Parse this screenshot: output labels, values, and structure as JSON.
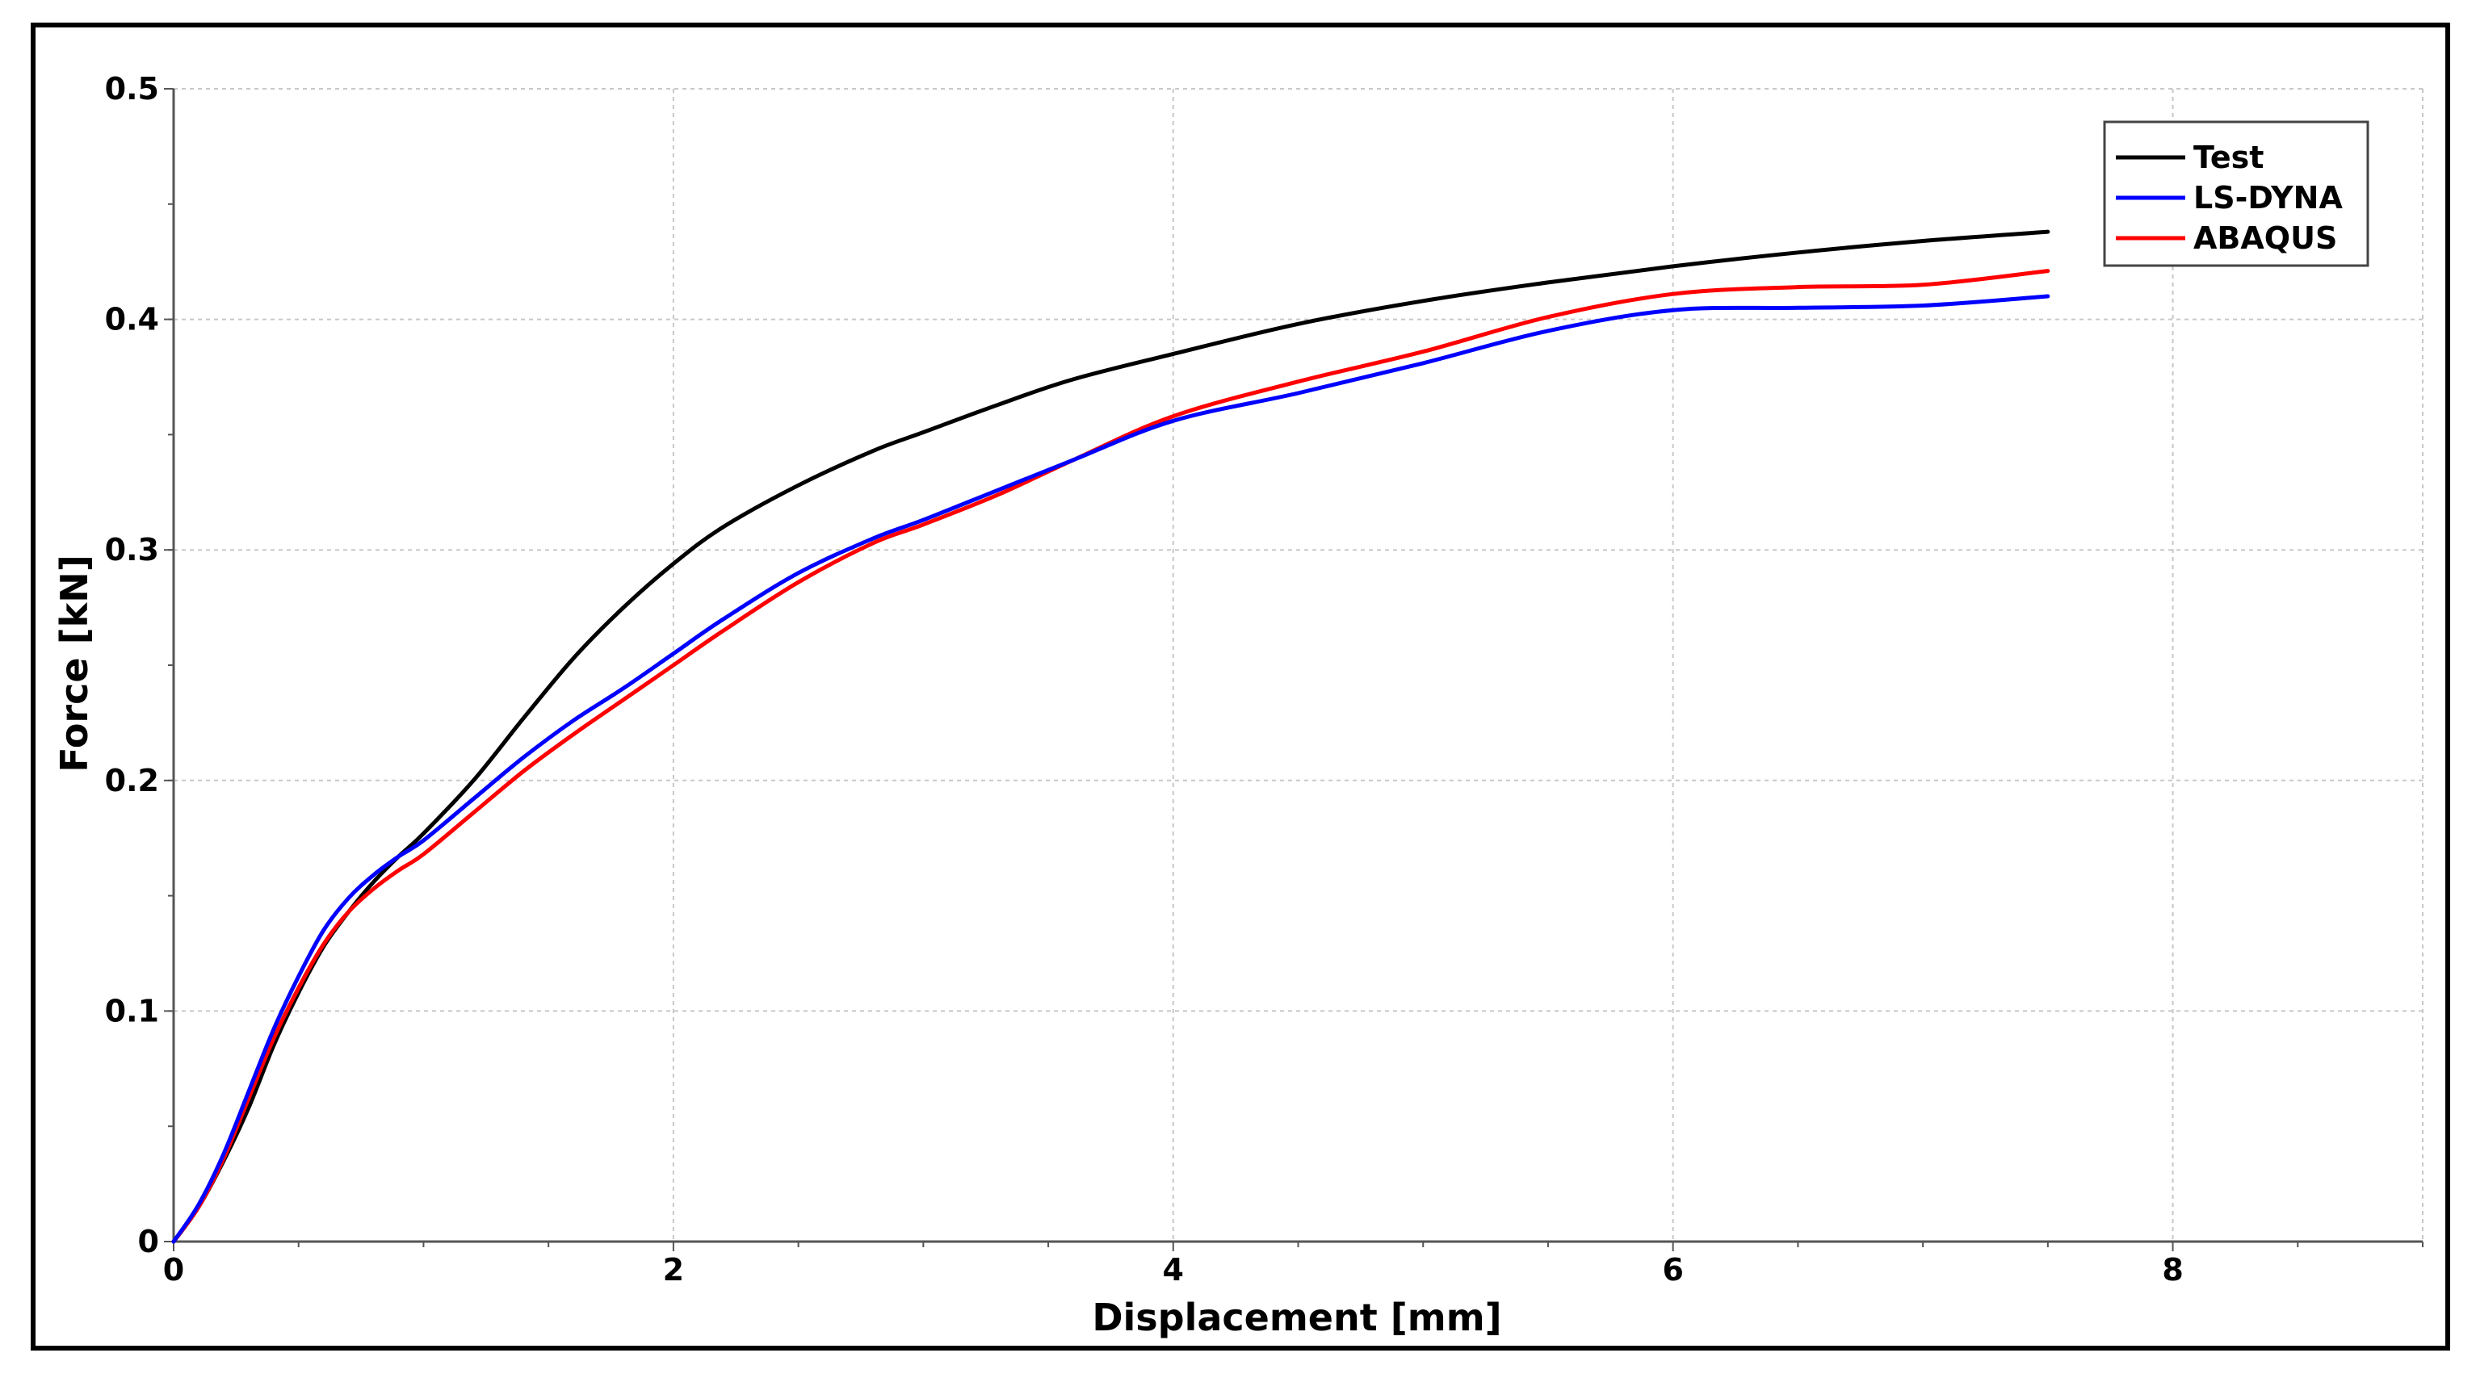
{
  "chart_data": {
    "type": "line",
    "xlabel": "Displacement [mm]",
    "ylabel": "Force [kN]",
    "xlim": [
      0,
      9
    ],
    "ylim": [
      0,
      0.5
    ],
    "x_ticks": [
      0,
      2,
      4,
      6,
      8
    ],
    "y_ticks": [
      0,
      0.1,
      0.2,
      0.3,
      0.4,
      0.5
    ],
    "x_tick_labels": [
      "0",
      "2",
      "4",
      "6",
      "8"
    ],
    "y_tick_labels": [
      "0",
      "0.1",
      "0.2",
      "0.3",
      "0.4",
      "0.5"
    ],
    "grid": true,
    "legend_position": "top-right",
    "series": [
      {
        "name": "Test",
        "color": "#000000",
        "x": [
          0,
          0.1,
          0.2,
          0.3,
          0.4,
          0.5,
          0.6,
          0.7,
          0.8,
          0.9,
          1.0,
          1.2,
          1.4,
          1.6,
          1.8,
          2.0,
          2.2,
          2.5,
          2.8,
          3.0,
          3.3,
          3.6,
          4.0,
          4.5,
          5.0,
          5.5,
          6.0,
          6.5,
          7.0,
          7.5
        ],
        "y": [
          0,
          0.015,
          0.035,
          0.058,
          0.085,
          0.108,
          0.128,
          0.143,
          0.156,
          0.167,
          0.177,
          0.2,
          0.227,
          0.253,
          0.275,
          0.294,
          0.31,
          0.328,
          0.343,
          0.351,
          0.363,
          0.374,
          0.385,
          0.398,
          0.408,
          0.416,
          0.423,
          0.429,
          0.434,
          0.438
        ]
      },
      {
        "name": "LS-DYNA",
        "color": "#0000ff",
        "x": [
          0,
          0.1,
          0.2,
          0.3,
          0.4,
          0.5,
          0.6,
          0.7,
          0.8,
          0.9,
          1.0,
          1.2,
          1.4,
          1.6,
          1.8,
          2.0,
          2.2,
          2.5,
          2.8,
          3.0,
          3.3,
          3.6,
          4.0,
          4.5,
          5.0,
          5.5,
          6.0,
          6.5,
          7.0,
          7.5
        ],
        "y": [
          0,
          0.016,
          0.038,
          0.065,
          0.092,
          0.115,
          0.135,
          0.149,
          0.159,
          0.167,
          0.174,
          0.192,
          0.21,
          0.226,
          0.24,
          0.255,
          0.27,
          0.29,
          0.305,
          0.313,
          0.326,
          0.339,
          0.356,
          0.368,
          0.381,
          0.395,
          0.404,
          0.405,
          0.406,
          0.41
        ]
      },
      {
        "name": "ABAQUS",
        "color": "#ff0000",
        "x": [
          0,
          0.1,
          0.2,
          0.3,
          0.4,
          0.5,
          0.6,
          0.7,
          0.8,
          0.9,
          1.0,
          1.2,
          1.4,
          1.6,
          1.8,
          2.0,
          2.2,
          2.5,
          2.8,
          3.0,
          3.3,
          3.6,
          4.0,
          4.5,
          5.0,
          5.5,
          6.0,
          6.5,
          7.0,
          7.5
        ],
        "y": [
          0,
          0.015,
          0.036,
          0.062,
          0.088,
          0.11,
          0.129,
          0.143,
          0.153,
          0.161,
          0.168,
          0.186,
          0.204,
          0.22,
          0.235,
          0.25,
          0.265,
          0.286,
          0.303,
          0.311,
          0.324,
          0.339,
          0.358,
          0.373,
          0.386,
          0.401,
          0.411,
          0.414,
          0.415,
          0.421
        ]
      }
    ]
  }
}
